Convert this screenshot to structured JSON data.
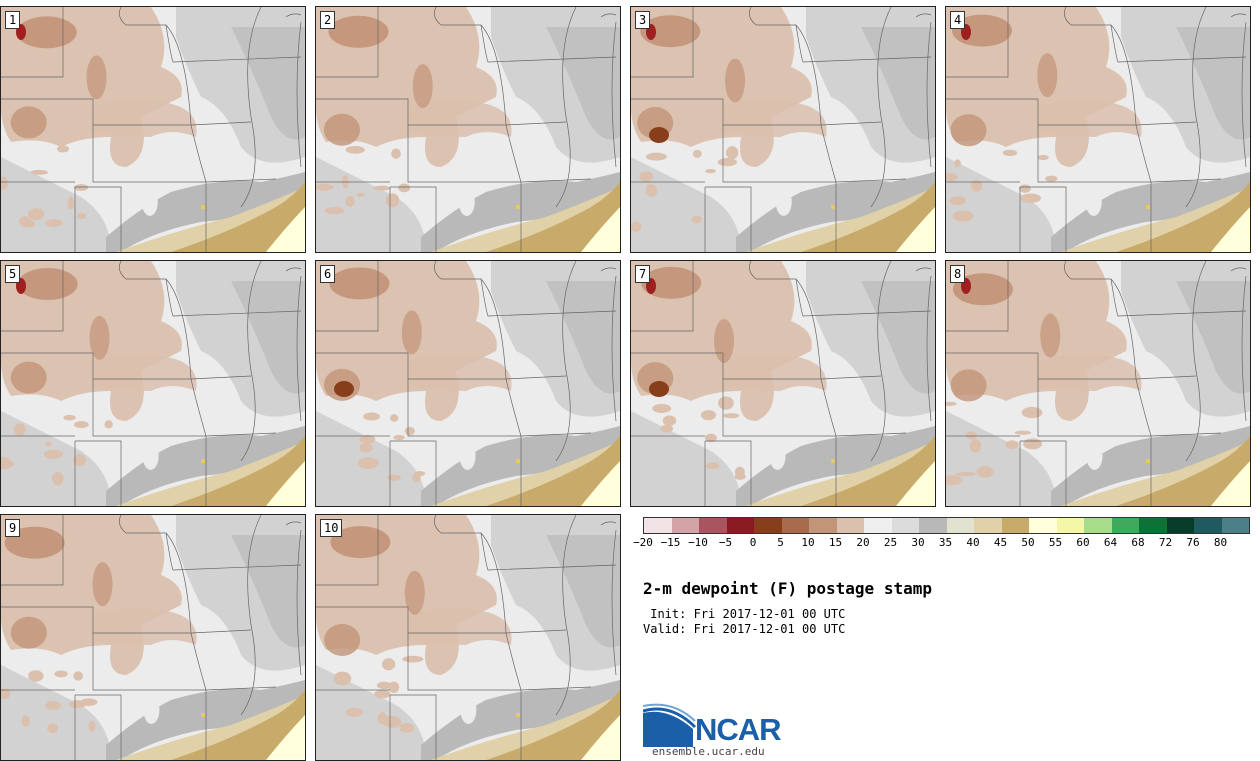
{
  "title": "2-m dewpoint (F) postage stamp",
  "init_label": " Init:",
  "init_value": "Fri 2017-12-01 00 UTC",
  "valid_label": "Valid:",
  "valid_value": "Fri 2017-12-01 00 UTC",
  "logo_text": "NCAR",
  "site": "ensemble.ucar.edu",
  "members": [
    "1",
    "2",
    "3",
    "4",
    "5",
    "6",
    "7",
    "8",
    "9",
    "10"
  ],
  "colorbar": {
    "ticks": [
      "−20",
      "−15",
      "−10",
      "−5",
      "0",
      "5",
      "10",
      "15",
      "20",
      "25",
      "30",
      "35",
      "40",
      "45",
      "50",
      "55",
      "60",
      "64",
      "68",
      "72",
      "76",
      "80"
    ],
    "colors": [
      "#f2e4e6",
      "#d4a3a8",
      "#a95560",
      "#8a1a22",
      "#863f1a",
      "#a86c4c",
      "#c29478",
      "#dbc0ae",
      "#efefef",
      "#dcdcdc",
      "#b8b8b8",
      "#e2e2d0",
      "#e0d1a8",
      "#c8ab6a",
      "#ffffdc",
      "#f4f6a8",
      "#a7dc8a",
      "#3faa5b",
      "#0e7236",
      "#063d2a",
      "#1e5a5e",
      "#4c8088"
    ]
  },
  "colors": {
    "land_light": "#ececec",
    "land_gray": "#d2d2d2",
    "land_darkgray": "#b9b9b9",
    "tan": "#dbc0ae",
    "brown": "#c29478",
    "darkbrown": "#863f1a",
    "red": "#a02020",
    "yellowtan": "#e0d1a8",
    "gold": "#c8ab6a",
    "cream": "#ffffdc"
  }
}
